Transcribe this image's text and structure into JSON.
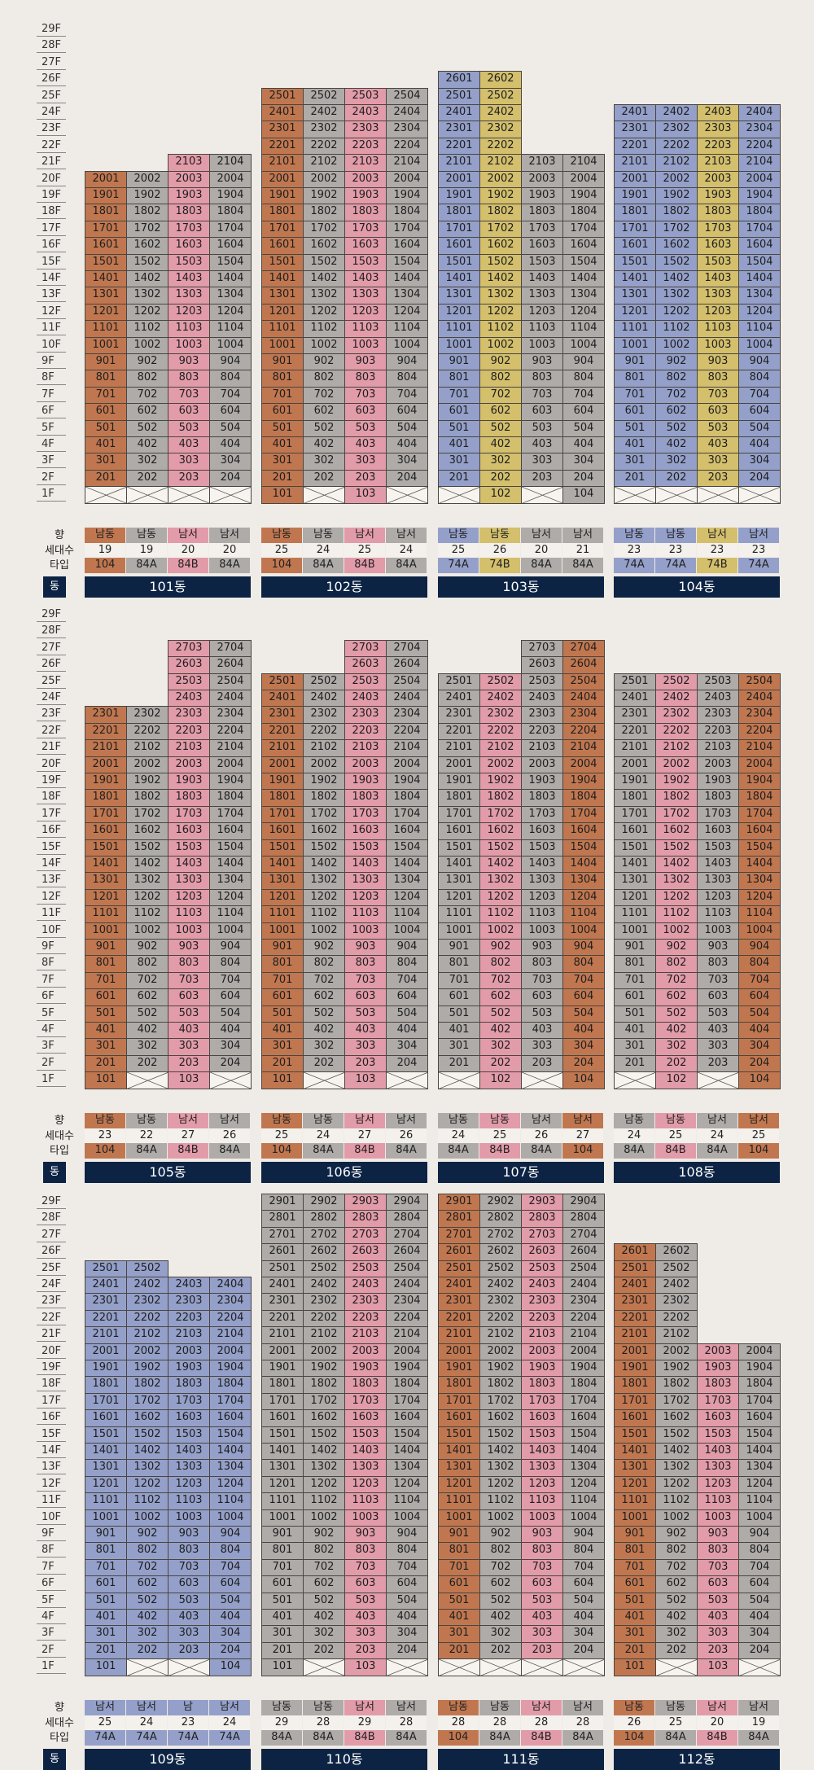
{
  "floor_labels": [
    "29F",
    "28F",
    "27F",
    "26F",
    "25F",
    "24F",
    "23F",
    "22F",
    "21F",
    "20F",
    "19F",
    "18F",
    "17F",
    "16F",
    "15F",
    "14F",
    "13F",
    "12F",
    "11F",
    "10F",
    "9F",
    "8F",
    "7F",
    "6F",
    "5F",
    "4F",
    "3F",
    "2F",
    "1F"
  ],
  "row_labels": {
    "direction": "향",
    "households": "세대수",
    "type": "타입",
    "dong": "동"
  },
  "colors": {
    "orange": "#c07750",
    "gray": "#aeaba9",
    "pink": "#e29ba9",
    "blue": "#94a0c9",
    "yellow": "#d3bf6c",
    "white": "#f4f1ec",
    "navy": "#0c2344"
  },
  "sections": [
    {
      "buildings": [
        {
          "name": "101동",
          "columns": [
            {
              "line": "01",
              "color": "orange",
              "top": 20,
              "missing": [
                1
              ],
              "direction": "남동",
              "households": "19",
              "type": "104"
            },
            {
              "line": "02",
              "color": "gray",
              "top": 20,
              "missing": [
                1
              ],
              "direction": "남동",
              "households": "19",
              "type": "84A"
            },
            {
              "line": "03",
              "color": "pink",
              "top": 21,
              "missing": [
                1
              ],
              "direction": "남서",
              "households": "20",
              "type": "84B"
            },
            {
              "line": "04",
              "color": "gray",
              "top": 21,
              "missing": [
                1
              ],
              "direction": "남서",
              "households": "20",
              "type": "84A"
            }
          ]
        },
        {
          "name": "102동",
          "columns": [
            {
              "line": "01",
              "color": "orange",
              "top": 25,
              "missing": [],
              "direction": "남동",
              "households": "25",
              "type": "104"
            },
            {
              "line": "02",
              "color": "gray",
              "top": 25,
              "missing": [
                1
              ],
              "direction": "남동",
              "households": "24",
              "type": "84A"
            },
            {
              "line": "03",
              "color": "pink",
              "top": 25,
              "missing": [],
              "direction": "남서",
              "households": "25",
              "type": "84B"
            },
            {
              "line": "04",
              "color": "gray",
              "top": 25,
              "missing": [
                1
              ],
              "direction": "남서",
              "households": "24",
              "type": "84A"
            }
          ]
        },
        {
          "name": "103동",
          "columns": [
            {
              "line": "01",
              "color": "blue",
              "top": 26,
              "missing": [
                1
              ],
              "direction": "남동",
              "households": "25",
              "type": "74A"
            },
            {
              "line": "02",
              "color": "yellow",
              "top": 26,
              "missing": [],
              "direction": "남동",
              "households": "26",
              "type": "74B"
            },
            {
              "line": "03",
              "color": "gray",
              "top": 21,
              "missing": [
                1
              ],
              "direction": "남서",
              "households": "20",
              "type": "84A"
            },
            {
              "line": "04",
              "color": "gray",
              "top": 21,
              "missing": [],
              "direction": "남서",
              "households": "21",
              "type": "84A"
            }
          ]
        },
        {
          "name": "104동",
          "columns": [
            {
              "line": "01",
              "color": "blue",
              "top": 24,
              "missing": [
                1
              ],
              "direction": "남동",
              "households": "23",
              "type": "74A"
            },
            {
              "line": "02",
              "color": "blue",
              "top": 24,
              "missing": [
                1
              ],
              "direction": "남동",
              "households": "23",
              "type": "74A"
            },
            {
              "line": "03",
              "color": "yellow",
              "top": 24,
              "missing": [
                1
              ],
              "direction": "남서",
              "households": "23",
              "type": "74B"
            },
            {
              "line": "04",
              "color": "blue",
              "top": 24,
              "missing": [
                1
              ],
              "direction": "남서",
              "households": "23",
              "type": "74A"
            }
          ]
        }
      ]
    },
    {
      "buildings": [
        {
          "name": "105동",
          "columns": [
            {
              "line": "01",
              "color": "orange",
              "top": 23,
              "missing": [],
              "direction": "남동",
              "households": "23",
              "type": "104"
            },
            {
              "line": "02",
              "color": "gray",
              "top": 23,
              "missing": [
                1
              ],
              "direction": "남동",
              "households": "22",
              "type": "84A"
            },
            {
              "line": "03",
              "color": "pink",
              "top": 27,
              "missing": [],
              "direction": "남서",
              "households": "27",
              "type": "84B"
            },
            {
              "line": "04",
              "color": "gray",
              "top": 27,
              "missing": [
                1
              ],
              "direction": "남서",
              "households": "26",
              "type": "84A"
            }
          ]
        },
        {
          "name": "106동",
          "columns": [
            {
              "line": "01",
              "color": "orange",
              "top": 25,
              "missing": [],
              "direction": "남동",
              "households": "25",
              "type": "104"
            },
            {
              "line": "02",
              "color": "gray",
              "top": 25,
              "missing": [
                1
              ],
              "direction": "남동",
              "households": "24",
              "type": "84A"
            },
            {
              "line": "03",
              "color": "pink",
              "top": 27,
              "missing": [],
              "direction": "남서",
              "households": "27",
              "type": "84B"
            },
            {
              "line": "04",
              "color": "gray",
              "top": 27,
              "missing": [
                1
              ],
              "direction": "남서",
              "households": "26",
              "type": "84A"
            }
          ]
        },
        {
          "name": "107동",
          "columns": [
            {
              "line": "01",
              "color": "gray",
              "top": 25,
              "missing": [
                1
              ],
              "direction": "남동",
              "households": "24",
              "type": "84A"
            },
            {
              "line": "02",
              "color": "pink",
              "top": 25,
              "missing": [],
              "direction": "남동",
              "households": "25",
              "type": "84B"
            },
            {
              "line": "03",
              "color": "gray",
              "top": 27,
              "missing": [
                1
              ],
              "direction": "남서",
              "households": "26",
              "type": "84A"
            },
            {
              "line": "04",
              "color": "orange",
              "top": 27,
              "missing": [],
              "direction": "남서",
              "households": "27",
              "type": "104"
            }
          ]
        },
        {
          "name": "108동",
          "columns": [
            {
              "line": "01",
              "color": "gray",
              "top": 25,
              "missing": [
                1
              ],
              "direction": "남동",
              "households": "24",
              "type": "84A"
            },
            {
              "line": "02",
              "color": "pink",
              "top": 25,
              "missing": [],
              "direction": "남동",
              "households": "25",
              "type": "84B"
            },
            {
              "line": "03",
              "color": "gray",
              "top": 25,
              "missing": [
                1
              ],
              "direction": "남서",
              "households": "24",
              "type": "84A"
            },
            {
              "line": "04",
              "color": "orange",
              "top": 25,
              "missing": [],
              "direction": "남서",
              "households": "25",
              "type": "104"
            }
          ]
        }
      ]
    },
    {
      "buildings": [
        {
          "name": "109동",
          "columns": [
            {
              "line": "01",
              "color": "blue",
              "top": 25,
              "missing": [],
              "direction": "남서",
              "households": "25",
              "type": "74A"
            },
            {
              "line": "02",
              "color": "blue",
              "top": 25,
              "missing": [
                1
              ],
              "direction": "남서",
              "households": "24",
              "type": "74A"
            },
            {
              "line": "03",
              "color": "blue",
              "top": 24,
              "missing": [
                1
              ],
              "direction": "남",
              "households": "23",
              "type": "74A"
            },
            {
              "line": "04",
              "color": "blue",
              "top": 24,
              "missing": [],
              "direction": "남서",
              "households": "24",
              "type": "74A"
            }
          ]
        },
        {
          "name": "110동",
          "columns": [
            {
              "line": "01",
              "color": "gray",
              "top": 29,
              "missing": [],
              "direction": "남동",
              "households": "29",
              "type": "84A"
            },
            {
              "line": "02",
              "color": "gray",
              "top": 29,
              "missing": [
                1
              ],
              "direction": "남동",
              "households": "28",
              "type": "84A"
            },
            {
              "line": "03",
              "color": "pink",
              "top": 29,
              "missing": [],
              "direction": "남서",
              "households": "29",
              "type": "84B"
            },
            {
              "line": "04",
              "color": "gray",
              "top": 29,
              "missing": [
                1
              ],
              "direction": "남서",
              "households": "28",
              "type": "84A"
            }
          ]
        },
        {
          "name": "111동",
          "columns": [
            {
              "line": "01",
              "color": "orange",
              "top": 29,
              "missing": [
                1
              ],
              "direction": "남동",
              "households": "28",
              "type": "104"
            },
            {
              "line": "02",
              "color": "gray",
              "top": 29,
              "missing": [
                1
              ],
              "direction": "남동",
              "households": "28",
              "type": "84A"
            },
            {
              "line": "03",
              "color": "pink",
              "top": 29,
              "missing": [
                1
              ],
              "direction": "남서",
              "households": "28",
              "type": "84B"
            },
            {
              "line": "04",
              "color": "gray",
              "top": 29,
              "missing": [
                1
              ],
              "direction": "남서",
              "households": "28",
              "type": "84A"
            }
          ]
        },
        {
          "name": "112동",
          "columns": [
            {
              "line": "01",
              "color": "orange",
              "top": 26,
              "missing": [],
              "direction": "남동",
              "households": "26",
              "type": "104"
            },
            {
              "line": "02",
              "color": "gray",
              "top": 26,
              "missing": [
                1
              ],
              "direction": "남동",
              "households": "25",
              "type": "84A"
            },
            {
              "line": "03",
              "color": "pink",
              "top": 20,
              "missing": [],
              "direction": "남서",
              "households": "20",
              "type": "84B"
            },
            {
              "line": "04",
              "color": "gray",
              "top": 20,
              "missing": [
                1
              ],
              "direction": "남서",
              "households": "19",
              "type": "84A"
            }
          ]
        }
      ]
    }
  ]
}
